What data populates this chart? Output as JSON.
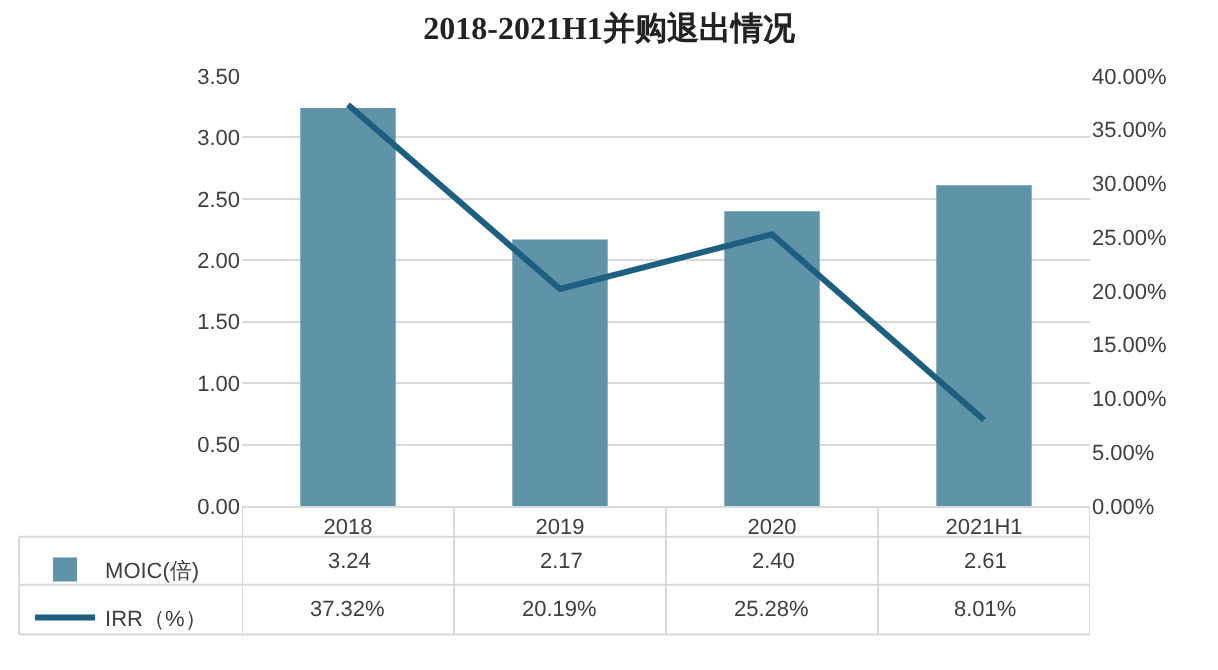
{
  "chart_data": {
    "type": "bar",
    "title": "2018-2021H1并购退出情况",
    "categories": [
      "2018",
      "2019",
      "2020",
      "2021H1"
    ],
    "series": [
      {
        "name": "MOIC(倍)",
        "color": "#5f93a8",
        "values": [
          3.24,
          2.17,
          2.4,
          2.61
        ],
        "value_labels": [
          "3.24",
          "2.17",
          "2.40",
          "2.61"
        ]
      },
      {
        "name": "IRR（%）",
        "type": "line",
        "axis": "y2",
        "color": "#1d5f80",
        "values": [
          37.32,
          20.19,
          25.28,
          8.01
        ],
        "value_labels": [
          "37.32%",
          "20.19%",
          "25.28%",
          "8.01%"
        ]
      }
    ],
    "ylim": [
      0,
      3.5
    ],
    "yticks": [
      {
        "value": 0,
        "label": "0.00"
      },
      {
        "value": 0.5,
        "label": "0.50"
      },
      {
        "value": 1,
        "label": "1.00"
      },
      {
        "value": 1.5,
        "label": "1.50"
      },
      {
        "value": 2,
        "label": "2.00"
      },
      {
        "value": 2.5,
        "label": "2.50"
      },
      {
        "value": 3,
        "label": "3.00"
      },
      {
        "value": 3.5,
        "label": "3.50"
      }
    ],
    "y2lim": [
      0,
      40
    ],
    "y2ticks": [
      {
        "value": 0,
        "label": "0.00%"
      },
      {
        "value": 5,
        "label": "5.00%"
      },
      {
        "value": 10,
        "label": "10.00%"
      },
      {
        "value": 15,
        "label": "15.00%"
      },
      {
        "value": 20,
        "label": "20.00%"
      },
      {
        "value": 25,
        "label": "25.00%"
      },
      {
        "value": 30,
        "label": "30.00%"
      },
      {
        "value": 35,
        "label": "35.00%"
      },
      {
        "value": 40,
        "label": "40.00%"
      }
    ],
    "grid": "y",
    "legend": "bottom left",
    "marker": "none",
    "line_style": "solid"
  }
}
